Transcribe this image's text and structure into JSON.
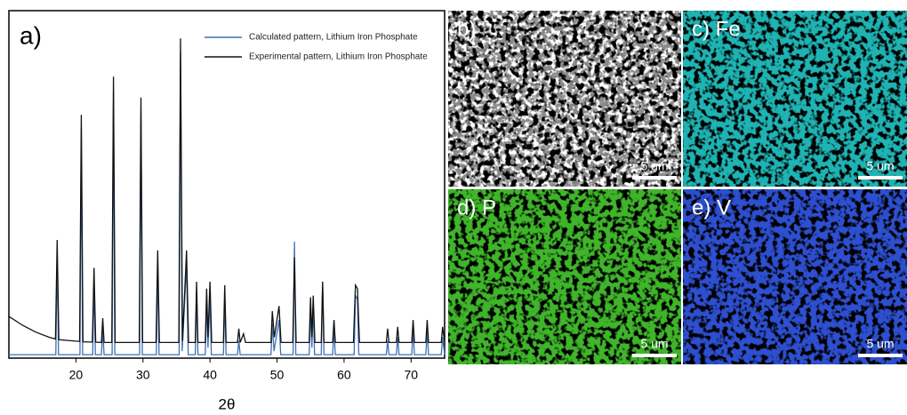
{
  "chart_data": {
    "type": "line",
    "xlabel": "2θ",
    "panel_label": "a)",
    "xlim": [
      10,
      75
    ],
    "ylim": [
      0,
      100
    ],
    "xticks": [
      20,
      30,
      40,
      50,
      60,
      70
    ],
    "legend": "upper right",
    "series": [
      {
        "name": "Calculated pattern, Lithium Iron Phosphate",
        "color": "#3f6fb6",
        "x": [
          10,
          17,
          17.2,
          17.4,
          20.6,
          20.8,
          21,
          22.5,
          22.7,
          22.9,
          23.8,
          24,
          24.2,
          25.4,
          25.6,
          25.8,
          29.5,
          29.7,
          29.9,
          32,
          32.2,
          32.4,
          35.4,
          35.6,
          35.85,
          36.5,
          36.75,
          37.8,
          38,
          38.2,
          39.3,
          39.5,
          39.7,
          40,
          40.2,
          42,
          42.2,
          42.4,
          44.1,
          44.3,
          44.5,
          49.1,
          49.3,
          49.55,
          50.3,
          50.55,
          52.4,
          52.6,
          52.8,
          54.8,
          55,
          55.2,
          55.4,
          55.6,
          56.6,
          56.8,
          57,
          58.3,
          58.5,
          58.7,
          61.5,
          61.7,
          62,
          62.2,
          66.3,
          66.5,
          66.7,
          67.8,
          68,
          68.2,
          70.1,
          70.3,
          70.5,
          72.2,
          72.4,
          72.6,
          74.5,
          74.7,
          75
        ],
        "values": [
          1,
          1,
          30,
          1,
          1,
          66,
          1,
          1,
          22,
          1,
          1,
          8,
          1,
          1,
          77,
          1,
          1,
          71,
          1,
          1,
          27,
          1,
          1,
          88,
          2,
          27,
          1,
          1,
          18,
          1,
          1,
          16,
          3,
          18,
          1,
          1,
          17,
          1,
          1,
          5,
          1,
          1,
          10,
          2,
          11,
          1,
          1,
          33.5,
          1,
          1,
          14,
          3,
          15,
          1,
          1,
          22,
          1,
          1,
          8,
          1,
          1,
          18,
          17,
          1,
          1,
          5,
          1,
          1,
          6,
          1,
          1,
          8,
          1,
          1,
          8,
          1,
          1,
          6,
          1
        ]
      },
      {
        "name": "Experimental pattern, Lithium Iron Phosphate",
        "color": "#111111",
        "x": [
          10,
          12,
          14,
          16,
          16.95,
          17.2,
          17.45,
          20.55,
          20.8,
          21.05,
          22.45,
          22.7,
          22.95,
          23.8,
          24,
          24.2,
          25.35,
          25.6,
          25.85,
          29.45,
          29.7,
          29.95,
          31.95,
          32.2,
          32.45,
          35.35,
          35.6,
          35.9,
          36.5,
          36.8,
          37.8,
          38,
          38.2,
          39.3,
          39.5,
          39.7,
          40,
          40.25,
          42,
          42.2,
          42.4,
          44.1,
          44.3,
          44.5,
          45,
          45.3,
          49.1,
          49.3,
          49.6,
          50.3,
          50.6,
          52.35,
          52.6,
          52.85,
          54.8,
          55,
          55.2,
          55.4,
          55.65,
          56.6,
          56.8,
          57,
          58.3,
          58.5,
          58.7,
          61.4,
          61.7,
          62,
          62.3,
          66.3,
          66.5,
          66.7,
          67.8,
          68,
          68.2,
          70.1,
          70.3,
          70.5,
          72.2,
          72.4,
          72.6,
          74.5,
          74.7,
          75
        ],
        "values": [
          12,
          9.5,
          7.5,
          6,
          5.5,
          34,
          5.3,
          4.8,
          70,
          4.7,
          4.6,
          26,
          4.6,
          4.5,
          11.5,
          4.5,
          4.5,
          81,
          4.5,
          4.5,
          75,
          4.5,
          4.5,
          31,
          4.5,
          4.5,
          92,
          5,
          31,
          4.5,
          4.5,
          22,
          4.5,
          4.5,
          20,
          6,
          22,
          4.5,
          4.5,
          21,
          4.5,
          4.5,
          8.5,
          4.5,
          7,
          4.5,
          4.5,
          13.5,
          6,
          15,
          4.5,
          4.5,
          29,
          4.5,
          4.5,
          17.5,
          6,
          18,
          4.5,
          4.5,
          22,
          4.5,
          4.5,
          11,
          4.5,
          4.5,
          21,
          20,
          4.5,
          4.5,
          8.5,
          4.5,
          4.5,
          9,
          4.5,
          4.5,
          11,
          4.5,
          4.5,
          11,
          4.5,
          4.5,
          9,
          4.5
        ]
      }
    ]
  },
  "panels": [
    {
      "label": "b)",
      "scale": "5 um"
    },
    {
      "label": "c) Fe",
      "scale": "5 um"
    },
    {
      "label": "d) P",
      "scale": "5 um"
    },
    {
      "label": "e) V",
      "scale": "5 um"
    }
  ]
}
